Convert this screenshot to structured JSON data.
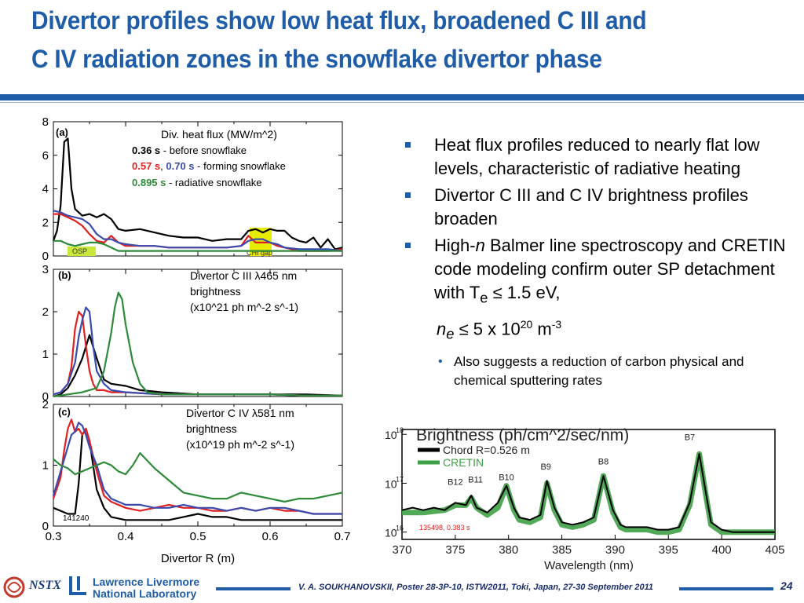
{
  "slide": {
    "title_line1": "Divertor profiles show low heat flux, broadened C III and",
    "title_line2": "C IV radiation zones in the snowflake divertor phase",
    "page_number": "24",
    "footer_citation": "V. A. SOUKHANOVSKII, Poster 28-3P-10, ISTW2011, Toki, Japan, 27-30 September 2011",
    "logo_nstx": "NSTX",
    "logo_llnl_line1": "Lawrence Livermore",
    "logo_llnl_line2": "National Laboratory",
    "accent_color": "#1f5da8"
  },
  "bullets": [
    {
      "text": "Heat flux profiles reduced to nearly flat low levels, characteristic of radiative heating"
    },
    {
      "text": "Divertor C III and C IV brightness profiles broaden"
    },
    {
      "text_pre": "High-",
      "text_italic": "n",
      "text_post": " Balmer line spectroscopy and CRETIN code modeling confirm outer SP detachment with T",
      "text_sub": "e",
      "text_end": " ≤ 1.5 eV,"
    }
  ],
  "bullet_cont": {
    "n": "n",
    "n_sub": "e",
    "mid": " ≤ 5 x 10",
    "exp": "20",
    "unit": " m",
    "unit_exp": "-3"
  },
  "sub_bullet": "Also suggests a reduction of carbon physical and chemical sputtering rates",
  "chart_data": [
    {
      "type": "line",
      "panel": "(a)",
      "title": "Div. heat flux (MW/m^2)",
      "ylim": [
        0,
        8
      ],
      "yticks": [
        "0",
        "2",
        "4",
        "6",
        "8"
      ],
      "xlim": [
        0.3,
        0.7
      ],
      "legend_lines": [
        {
          "bold": "0.36 s",
          "bold_color": "#000000",
          "rest": " - before snowflake"
        },
        {
          "bold": "0.57 s",
          "bold_color": "#e02020",
          "sep": ", ",
          "bold2": "0.70 s",
          "bold2_color": "#3a4bb0",
          "rest": " - forming snowflake"
        },
        {
          "bold": "0.895 s",
          "bold_color": "#2e8b3a",
          "rest": " - radiative snowflake"
        }
      ],
      "annotations": [
        "OSP",
        "CHI gap"
      ],
      "series": [
        {
          "name": "0.36 s",
          "color": "#000000",
          "x": [
            0.3,
            0.305,
            0.31,
            0.315,
            0.32,
            0.325,
            0.33,
            0.335,
            0.34,
            0.35,
            0.36,
            0.37,
            0.38,
            0.39,
            0.4,
            0.42,
            0.44,
            0.46,
            0.48,
            0.5,
            0.52,
            0.54,
            0.56,
            0.57,
            0.58,
            0.59,
            0.6,
            0.61,
            0.62,
            0.63,
            0.64,
            0.65,
            0.66,
            0.67,
            0.68,
            0.69,
            0.7
          ],
          "y": [
            0.9,
            1.5,
            3.0,
            6.8,
            7.0,
            4.0,
            2.8,
            2.6,
            2.4,
            2.5,
            2.3,
            2.5,
            2.2,
            1.6,
            1.5,
            1.6,
            1.4,
            1.2,
            1.1,
            1.1,
            0.9,
            1.0,
            1.0,
            1.5,
            1.6,
            1.4,
            1.6,
            1.5,
            1.5,
            1.1,
            0.9,
            0.8,
            1.1,
            0.5,
            1.0,
            0.4,
            0.5
          ]
        },
        {
          "name": "0.57 s",
          "color": "#e02020",
          "x": [
            0.3,
            0.31,
            0.32,
            0.33,
            0.34,
            0.35,
            0.36,
            0.37,
            0.38,
            0.39,
            0.4,
            0.42,
            0.44,
            0.46,
            0.48,
            0.5,
            0.52,
            0.54,
            0.56,
            0.57,
            0.58,
            0.59,
            0.6,
            0.61,
            0.62,
            0.64,
            0.66,
            0.68,
            0.7
          ],
          "y": [
            2.5,
            2.5,
            2.3,
            2.1,
            1.8,
            1.3,
            0.9,
            0.8,
            1.2,
            0.8,
            0.6,
            0.6,
            0.6,
            0.5,
            0.5,
            0.5,
            0.5,
            0.5,
            0.6,
            1.2,
            0.8,
            0.8,
            0.8,
            0.6,
            0.5,
            0.3,
            0.3,
            0.3,
            0.4
          ]
        },
        {
          "name": "0.70 s",
          "color": "#3a4bb0",
          "x": [
            0.3,
            0.31,
            0.32,
            0.33,
            0.34,
            0.35,
            0.36,
            0.37,
            0.38,
            0.39,
            0.4,
            0.42,
            0.44,
            0.46,
            0.48,
            0.5,
            0.52,
            0.54,
            0.56,
            0.57,
            0.58,
            0.59,
            0.6,
            0.61,
            0.62,
            0.64,
            0.66,
            0.68,
            0.7
          ],
          "y": [
            2.7,
            2.6,
            2.4,
            2.3,
            2.2,
            1.9,
            1.3,
            1.0,
            1.0,
            0.8,
            0.7,
            0.6,
            0.6,
            0.5,
            0.5,
            0.5,
            0.5,
            0.5,
            0.6,
            0.9,
            1.0,
            1.0,
            0.8,
            0.7,
            0.5,
            0.4,
            0.4,
            0.4,
            0.3
          ]
        },
        {
          "name": "0.895 s",
          "color": "#2e8b3a",
          "x": [
            0.3,
            0.31,
            0.32,
            0.33,
            0.34,
            0.35,
            0.36,
            0.37,
            0.38,
            0.39,
            0.4,
            0.42,
            0.44,
            0.46,
            0.48,
            0.5,
            0.52,
            0.54,
            0.56,
            0.58,
            0.6,
            0.62,
            0.64,
            0.66,
            0.68,
            0.7
          ],
          "y": [
            0.9,
            0.9,
            0.7,
            0.6,
            0.7,
            0.8,
            0.8,
            0.7,
            0.5,
            0.3,
            0.3,
            0.3,
            0.3,
            0.3,
            0.3,
            0.3,
            0.3,
            0.3,
            0.3,
            0.3,
            0.3,
            0.3,
            0.3,
            0.3,
            0.3,
            0.3
          ]
        }
      ]
    },
    {
      "type": "line",
      "panel": "(b)",
      "title_lines": [
        "Divertor C III λ465 nm",
        "brightness",
        "(x10^21 ph m^-2 s^-1)"
      ],
      "ylim": [
        0,
        3
      ],
      "yticks": [
        "0",
        "1",
        "2",
        "3"
      ],
      "xlim": [
        0.3,
        0.7
      ],
      "series": [
        {
          "name": "0.36 s",
          "color": "#000000",
          "x": [
            0.3,
            0.31,
            0.32,
            0.33,
            0.34,
            0.35,
            0.36,
            0.37,
            0.38,
            0.4,
            0.42,
            0.45,
            0.5,
            0.55,
            0.6,
            0.65,
            0.7
          ],
          "y": [
            0.0,
            0.05,
            0.2,
            0.5,
            0.9,
            1.45,
            0.9,
            0.4,
            0.3,
            0.25,
            0.15,
            0.1,
            0.05,
            0.05,
            0.05,
            0.05,
            0.02
          ]
        },
        {
          "name": "0.57 s",
          "color": "#e02020",
          "x": [
            0.3,
            0.31,
            0.32,
            0.325,
            0.33,
            0.335,
            0.34,
            0.345,
            0.35,
            0.355,
            0.36,
            0.37,
            0.38,
            0.4,
            0.45,
            0.5,
            0.55,
            0.6,
            0.65,
            0.7
          ],
          "y": [
            0.05,
            0.1,
            0.3,
            0.7,
            1.6,
            2.0,
            1.9,
            1.2,
            0.6,
            0.3,
            0.15,
            0.15,
            0.1,
            0.1,
            0.05,
            0.05,
            0.05,
            0.05,
            0.02,
            0.02
          ]
        },
        {
          "name": "0.70 s",
          "color": "#3a4bb0",
          "x": [
            0.3,
            0.31,
            0.32,
            0.33,
            0.335,
            0.34,
            0.345,
            0.35,
            0.355,
            0.36,
            0.37,
            0.38,
            0.4,
            0.45,
            0.5,
            0.55,
            0.6,
            0.65,
            0.7
          ],
          "y": [
            0.05,
            0.1,
            0.3,
            0.8,
            1.4,
            1.8,
            2.1,
            2.0,
            1.2,
            0.6,
            0.3,
            0.15,
            0.1,
            0.05,
            0.05,
            0.05,
            0.05,
            0.02,
            0.02
          ]
        },
        {
          "name": "0.895 s",
          "color": "#2e8b3a",
          "x": [
            0.3,
            0.32,
            0.34,
            0.36,
            0.37,
            0.38,
            0.385,
            0.39,
            0.395,
            0.4,
            0.41,
            0.42,
            0.43,
            0.45,
            0.5,
            0.55,
            0.6,
            0.65,
            0.7
          ],
          "y": [
            0.0,
            0.05,
            0.1,
            0.2,
            0.6,
            1.5,
            2.1,
            2.45,
            2.3,
            1.7,
            0.8,
            0.3,
            0.1,
            0.05,
            0.05,
            0.05,
            0.05,
            0.02,
            0.02
          ]
        }
      ]
    },
    {
      "type": "line",
      "panel": "(c)",
      "title_lines": [
        "Divertor C IV λ581 nm",
        "brightness",
        "(x10^19 ph m^-2 s^-1)"
      ],
      "ylim": [
        0,
        2
      ],
      "yticks": [
        "0",
        "1",
        "2"
      ],
      "xlim": [
        0.3,
        0.7
      ],
      "xticks": [
        "0.3",
        "0.4",
        "0.5",
        "0.6",
        "0.7"
      ],
      "xlabel": "Divertor R (m)",
      "shot_label": "141240",
      "series": [
        {
          "name": "0.36 s",
          "color": "#000000",
          "x": [
            0.3,
            0.31,
            0.32,
            0.33,
            0.335,
            0.34,
            0.345,
            0.35,
            0.355,
            0.36,
            0.37,
            0.38,
            0.4,
            0.42,
            0.44,
            0.46,
            0.48,
            0.5,
            0.52,
            0.54,
            0.56,
            0.58,
            0.6,
            0.62,
            0.64,
            0.66,
            0.68,
            0.7
          ],
          "y": [
            0.3,
            0.25,
            0.2,
            0.2,
            0.7,
            1.5,
            1.6,
            1.4,
            1.0,
            0.6,
            0.3,
            0.15,
            0.1,
            0.1,
            0.1,
            0.1,
            0.15,
            0.2,
            0.15,
            0.15,
            0.1,
            0.1,
            0.1,
            0.1,
            0.1,
            0.1,
            0.1,
            0.1
          ]
        },
        {
          "name": "0.57 s",
          "color": "#e02020",
          "x": [
            0.3,
            0.31,
            0.315,
            0.32,
            0.325,
            0.33,
            0.335,
            0.34,
            0.345,
            0.35,
            0.36,
            0.37,
            0.38,
            0.4,
            0.42,
            0.44,
            0.46,
            0.48,
            0.5,
            0.52,
            0.54,
            0.56,
            0.58,
            0.6,
            0.62,
            0.64,
            0.66,
            0.68,
            0.7
          ],
          "y": [
            0.45,
            0.8,
            1.25,
            1.6,
            1.75,
            1.55,
            1.6,
            1.5,
            1.6,
            1.4,
            0.9,
            0.5,
            0.4,
            0.3,
            0.25,
            0.3,
            0.35,
            0.3,
            0.3,
            0.25,
            0.25,
            0.3,
            0.25,
            0.3,
            0.25,
            0.25,
            0.2,
            0.2,
            0.2
          ]
        },
        {
          "name": "0.70 s",
          "color": "#3a4bb0",
          "x": [
            0.3,
            0.31,
            0.32,
            0.325,
            0.33,
            0.335,
            0.34,
            0.345,
            0.35,
            0.36,
            0.37,
            0.38,
            0.4,
            0.42,
            0.44,
            0.46,
            0.48,
            0.5,
            0.52,
            0.54,
            0.56,
            0.58,
            0.6,
            0.62,
            0.64,
            0.66,
            0.68,
            0.7
          ],
          "y": [
            0.5,
            0.9,
            1.3,
            1.5,
            1.55,
            1.7,
            1.65,
            1.5,
            1.3,
            1.0,
            0.6,
            0.45,
            0.35,
            0.35,
            0.3,
            0.3,
            0.35,
            0.3,
            0.3,
            0.25,
            0.3,
            0.25,
            0.3,
            0.3,
            0.25,
            0.2,
            0.2,
            0.2
          ]
        },
        {
          "name": "0.895 s",
          "color": "#2e8b3a",
          "x": [
            0.3,
            0.31,
            0.32,
            0.33,
            0.34,
            0.35,
            0.36,
            0.37,
            0.38,
            0.39,
            0.4,
            0.41,
            0.42,
            0.44,
            0.46,
            0.48,
            0.5,
            0.52,
            0.54,
            0.56,
            0.58,
            0.6,
            0.62,
            0.64,
            0.66,
            0.68,
            0.7
          ],
          "y": [
            1.1,
            1.0,
            0.95,
            0.85,
            0.9,
            0.95,
            1.0,
            1.05,
            1.0,
            0.9,
            0.85,
            1.0,
            1.2,
            0.95,
            0.75,
            0.55,
            0.5,
            0.45,
            0.45,
            0.55,
            0.5,
            0.45,
            0.4,
            0.45,
            0.45,
            0.5,
            0.55
          ]
        }
      ]
    },
    {
      "type": "line",
      "title": "Brightness (ph/cm^2/sec/nm)",
      "xlabel": "Wavelength (nm)",
      "xlim": [
        370,
        405
      ],
      "xticks": [
        "370",
        "375",
        "380",
        "385",
        "390",
        "395",
        "400",
        "405"
      ],
      "ylog": true,
      "ylim_exp": [
        16,
        18
      ],
      "yticks": [
        {
          "base": "10",
          "exp": "16"
        },
        {
          "base": "10",
          "exp": "17"
        },
        {
          "base": "10",
          "exp": "18"
        }
      ],
      "legend": [
        "Chord R=0.526 m",
        "CRETIN"
      ],
      "shot_label": "135498, 0.383 s",
      "peak_labels": [
        {
          "label": "B12",
          "x": 375.0,
          "y_exp": 16.9
        },
        {
          "label": "B11",
          "x": 376.9,
          "y_exp": 16.95
        },
        {
          "label": "B10",
          "x": 379.8,
          "y_exp": 17.0
        },
        {
          "label": "B9",
          "x": 383.5,
          "y_exp": 17.22
        },
        {
          "label": "B8",
          "x": 388.9,
          "y_exp": 17.32
        },
        {
          "label": "B7",
          "x": 397.0,
          "y_exp": 17.82
        }
      ],
      "series": [
        {
          "name": "Chord R=0.526 m",
          "color": "#000000",
          "x": [
            370,
            371,
            372,
            373,
            374,
            375,
            376,
            376.5,
            377,
            378,
            379,
            379.8,
            380.5,
            381,
            382,
            383,
            383.6,
            384.3,
            385,
            386,
            387,
            388,
            388.9,
            389.8,
            390.5,
            391,
            392,
            393,
            394,
            395,
            396,
            397,
            397.9,
            398.6,
            399,
            400,
            401,
            402,
            403,
            404,
            405
          ],
          "y_exp": [
            16.45,
            16.5,
            16.45,
            16.5,
            16.45,
            16.6,
            16.55,
            16.75,
            16.5,
            16.4,
            16.6,
            16.95,
            16.5,
            16.3,
            16.25,
            16.35,
            17.05,
            16.5,
            16.2,
            16.15,
            16.2,
            16.3,
            17.15,
            16.45,
            16.15,
            16.1,
            16.1,
            16.1,
            16.05,
            16.05,
            16.1,
            16.6,
            17.6,
            16.7,
            16.2,
            16.05,
            16.0,
            16.0,
            16.0,
            16.0,
            16.0
          ]
        },
        {
          "name": "CRETIN",
          "color": "#3fa046",
          "x": [
            370,
            372,
            374,
            375,
            376,
            376.5,
            377,
            378,
            379,
            379.8,
            380.5,
            381,
            382,
            383,
            383.6,
            384.3,
            385,
            386,
            387,
            388,
            388.9,
            389.8,
            390.5,
            391,
            392,
            393,
            394,
            395,
            396,
            397,
            397.9,
            398.6,
            399,
            400,
            401,
            402,
            403,
            404,
            405
          ],
          "y_exp": [
            16.4,
            16.4,
            16.45,
            16.55,
            16.55,
            16.7,
            16.5,
            16.35,
            16.5,
            16.95,
            16.45,
            16.25,
            16.2,
            16.3,
            17.0,
            16.45,
            16.15,
            16.1,
            16.15,
            16.25,
            17.15,
            16.4,
            16.1,
            16.05,
            16.05,
            16.05,
            16.0,
            16.0,
            16.05,
            16.55,
            17.6,
            16.65,
            16.15,
            16.0,
            16.0,
            16.0,
            16.0,
            16.0,
            16.0
          ]
        }
      ]
    }
  ]
}
